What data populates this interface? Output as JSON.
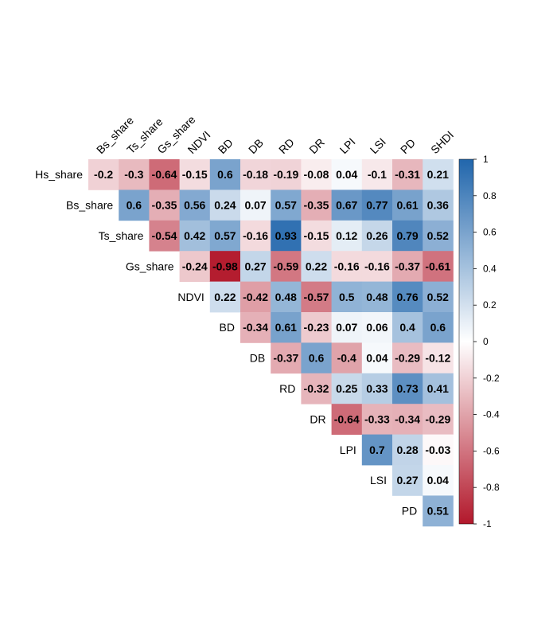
{
  "chart_data": {
    "type": "heatmap",
    "title": "",
    "column_labels": [
      "Bs_share",
      "Ts_share",
      "Gs_share",
      "NDVI",
      "BD",
      "DB",
      "RD",
      "DR",
      "LPI",
      "LSI",
      "PD",
      "SHDI"
    ],
    "row_labels": [
      "Hs_share",
      "Bs_share",
      "Ts_share",
      "Gs_share",
      "NDVI",
      "BD",
      "DB",
      "RD",
      "DR",
      "LPI",
      "LSI",
      "PD"
    ],
    "rows": [
      [
        -0.2,
        -0.3,
        -0.64,
        -0.15,
        0.6,
        -0.18,
        -0.19,
        -0.08,
        0.04,
        -0.1,
        -0.31,
        0.21
      ],
      [
        0.6,
        -0.35,
        0.56,
        0.24,
        0.07,
        0.57,
        -0.35,
        0.67,
        0.77,
        0.61,
        0.36
      ],
      [
        -0.54,
        0.42,
        0.57,
        -0.16,
        0.93,
        -0.15,
        0.12,
        0.26,
        0.79,
        0.52
      ],
      [
        -0.24,
        -0.98,
        0.27,
        -0.59,
        0.22,
        -0.16,
        -0.16,
        -0.37,
        -0.61
      ],
      [
        0.22,
        -0.42,
        0.48,
        -0.57,
        0.5,
        0.48,
        0.76,
        0.52
      ],
      [
        -0.34,
        0.61,
        -0.23,
        0.07,
        0.06,
        0.4,
        0.6
      ],
      [
        -0.37,
        0.6,
        -0.4,
        0.04,
        -0.29,
        -0.12
      ],
      [
        -0.32,
        0.25,
        0.33,
        0.73,
        0.41
      ],
      [
        -0.64,
        -0.33,
        -0.34,
        -0.29
      ],
      [
        0.7,
        0.28,
        -0.03
      ],
      [
        0.27,
        0.04
      ],
      [
        0.51
      ]
    ],
    "colorbar": {
      "ticks": [
        "1",
        "0.8",
        "0.6",
        "0.4",
        "0.2",
        "0",
        "-0.2",
        "-0.4",
        "-0.6",
        "-0.8",
        "-1"
      ],
      "range": [
        -1,
        1
      ],
      "colors": {
        "negative": "#b2182b",
        "zero": "#ffffff",
        "positive": "#2166ac"
      }
    }
  }
}
